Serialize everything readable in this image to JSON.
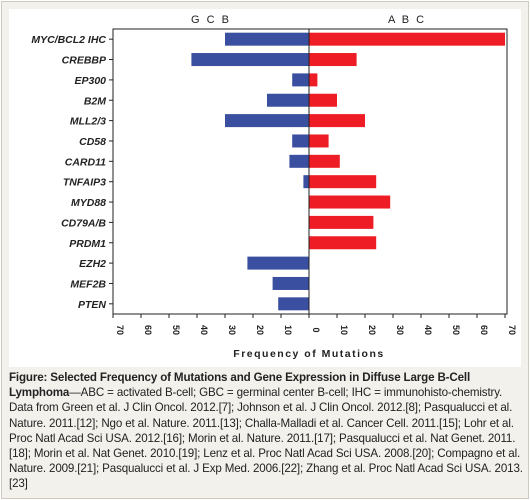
{
  "chart_data": {
    "type": "bar",
    "orientation": "horizontal",
    "diverging": true,
    "categories": [
      "MYC/BCL2 IHC",
      "CREBBP",
      "EP300",
      "B2M",
      "MLL2/3",
      "CD58",
      "CARD11",
      "TNFAIP3",
      "MYD88",
      "CD79A/B",
      "PRDM1",
      "EZH2",
      "MEF2B",
      "PTEN"
    ],
    "series": [
      {
        "name": "G C B",
        "color": "#3b4fa0",
        "values": [
          30,
          42,
          6,
          15,
          30,
          6,
          7,
          2,
          0,
          0,
          0,
          22,
          13,
          11
        ]
      },
      {
        "name": "A B C",
        "color": "#ee1c25",
        "values": [
          70,
          17,
          3,
          10,
          20,
          7,
          11,
          24,
          29,
          23,
          24,
          0,
          0,
          0
        ]
      }
    ],
    "xlabel": "Frequency of Mutations",
    "xticks": [
      "70",
      "60",
      "50",
      "40",
      "30",
      "20",
      "10",
      "0",
      "10",
      "20",
      "30",
      "40",
      "50",
      "60",
      "70"
    ],
    "xlim": [
      -70,
      70
    ],
    "grid": false,
    "legend": "group labels above each side"
  },
  "caption": {
    "title": "Figure: Selected Frequency of Mutations and Gene Expression in Diffuse Large B-Cell Lymphoma",
    "text": "—ABC = activated B-cell; GBC = germinal center B-cell; IHC = immunohisto-chemistry. Data from Green et al. J Clin Oncol. 2012.[7]; Johnson et al. J Clin Oncol. 2012.[8]; Pasqualucci et al. Nature. 2011.[12]; Ngo et al. Nature. 2011.[13]; Challa-Malladi et al. Cancer Cell. 2011.[15]; Lohr et al. Proc Natl Acad Sci USA. 2012.[16]; Morin et al. Nature. 2011.[17]; Pasqualucci et al. Nat Genet. 2011.[18]; Morin et al. Nat Genet. 2010.[19]; Lenz et al. Proc Natl Acad Sci USA. 2008.[20]; Compagno et al. Nature. 2009.[21]; Pasqualucci et al. J Exp Med. 2006.[22]; Zhang et al. Proc Natl Acad Sci USA. 2013.[23]"
  }
}
